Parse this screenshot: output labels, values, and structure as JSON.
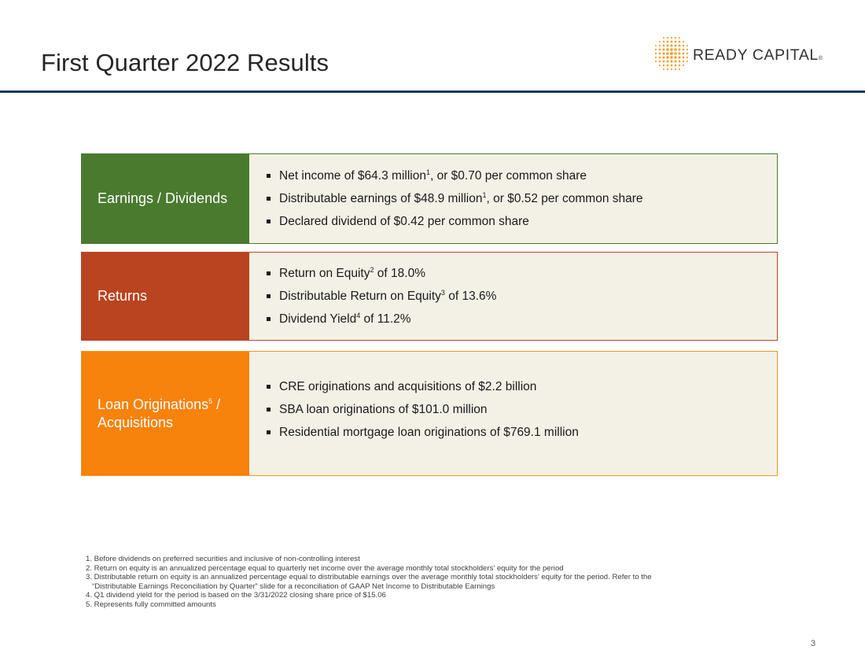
{
  "slide": {
    "title": "First Quarter 2022 Results",
    "page_number": "3"
  },
  "logo": {
    "text": "READY CAPITAL",
    "registered": "®",
    "icon": "dot-grid-logo-icon"
  },
  "colors": {
    "header_rule": "#1f3864",
    "earnings": "#4a7a2e",
    "returns": "#b9441f",
    "originations": "#f7820c",
    "content_bg": "#f3f1e6",
    "logo_dots": "#f0a030"
  },
  "blocks": [
    {
      "label": "Earnings / Dividends",
      "bullets": [
        {
          "pre": "Net income of $64.3 million",
          "sup": "1",
          "post": ", or $0.70 per common share"
        },
        {
          "pre": "Distributable earnings of $48.9 million",
          "sup": "1",
          "post": ", or $0.52 per common share"
        },
        {
          "pre": "Declared dividend of $0.42 per common share",
          "sup": "",
          "post": ""
        }
      ]
    },
    {
      "label": "Returns",
      "bullets": [
        {
          "pre": "Return on Equity",
          "sup": "2",
          "post": " of 18.0%"
        },
        {
          "pre": "Distributable Return on Equity",
          "sup": "3",
          "post": " of 13.6%"
        },
        {
          "pre": "Dividend Yield",
          "sup": "4",
          "post": " of 11.2%"
        }
      ]
    },
    {
      "label_line1": "Loan Originations",
      "label_sup": "5",
      "label_line1_post": " /",
      "label_line2": "Acquisitions",
      "bullets": [
        {
          "pre": "CRE originations and acquisitions of $2.2 billion",
          "sup": "",
          "post": ""
        },
        {
          "pre": "SBA loan originations of $101.0 million",
          "sup": "",
          "post": ""
        },
        {
          "pre": "Residential mortgage loan originations of $769.1 million",
          "sup": "",
          "post": ""
        }
      ]
    }
  ],
  "footnotes": [
    "1. Before dividends on preferred securities and inclusive of non-controlling interest",
    "2. Return on equity is an annualized percentage equal to quarterly net income over the average monthly total stockholders’ equity for the period",
    "3. Distributable return on equity is an annualized percentage equal to distributable earnings over the average monthly total stockholders’ equity for the period. Refer to the",
    "“Distributable Earnings Reconciliation by Quarter” slide for a reconciliation of GAAP Net Income to Distributable Earnings",
    "4. Q1 dividend yield for the period is based on the 3/31/2022 closing share price of $15.06",
    "5. Represents fully committed amounts"
  ]
}
